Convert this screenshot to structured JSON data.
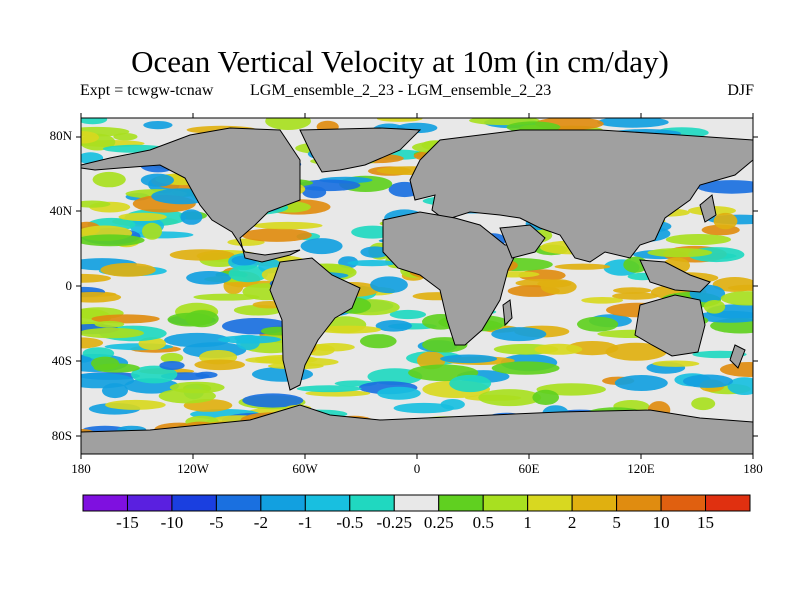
{
  "title": "Ocean Vertical Velocity at 10m (in cm/day)",
  "expt_label": "Expt = tcwgw-tcnaw",
  "ensemble_label": "LGM_ensemble_2_23 - LGM_ensemble_2_23",
  "season": "DJF",
  "map": {
    "ocean_base_color": "#e8e8e8",
    "land_color": "#a0a0a0",
    "lat_ticks": [
      "80N",
      "40N",
      "0",
      "40S",
      "80S"
    ],
    "lon_ticks": [
      "180",
      "120W",
      "60W",
      "0",
      "60E",
      "120E",
      "180"
    ]
  },
  "colorbar": {
    "colors": [
      "#7f10e0",
      "#5a20e0",
      "#1a3fe0",
      "#1a70e0",
      "#12a0e0",
      "#18bfe0",
      "#20d8c0",
      "#e8e8e8",
      "#60d020",
      "#a8e020",
      "#d8d820",
      "#e0b010",
      "#e08c10",
      "#e06010",
      "#e03010"
    ],
    "labels": [
      "-15",
      "-10",
      "-5",
      "-2",
      "-1",
      "-0.5",
      "-0.25",
      "0.25",
      "0.5",
      "1",
      "2",
      "5",
      "10",
      "15"
    ]
  }
}
